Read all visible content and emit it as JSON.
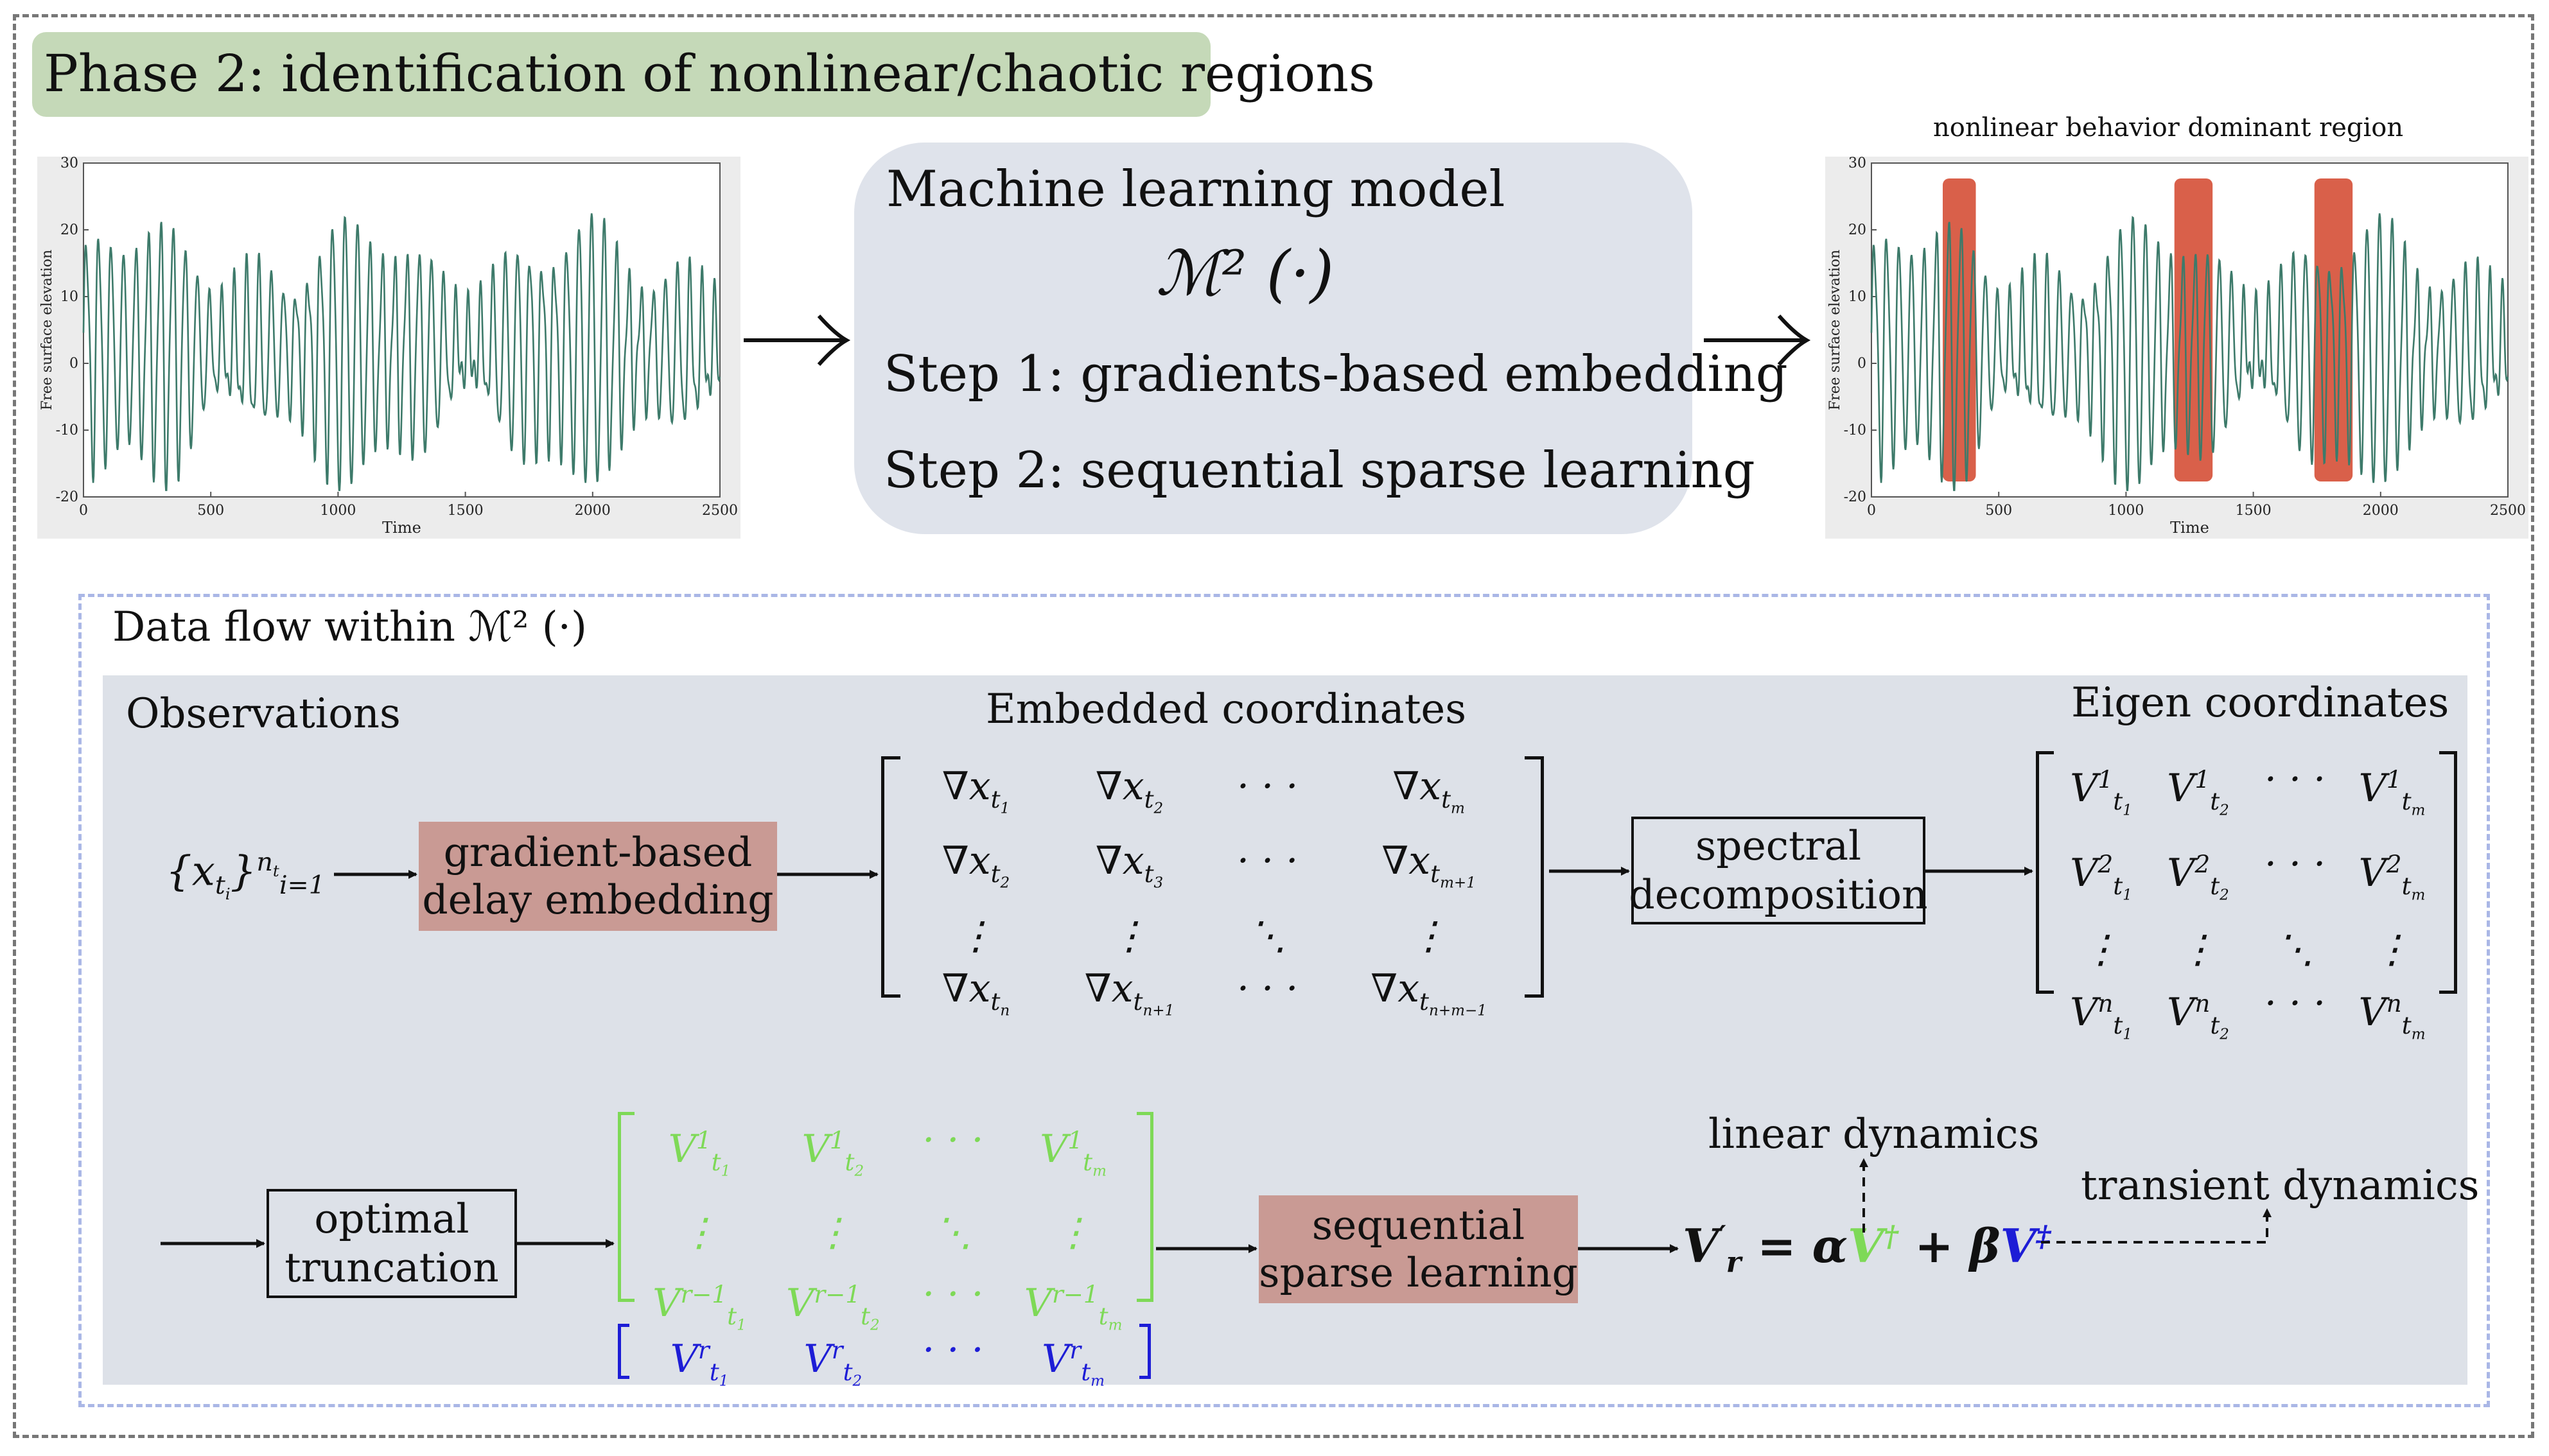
{
  "phase_title": "Phase 2:  identification of nonlinear/chaotic regions",
  "left_plot": {
    "ylabel": "Free surface elevation",
    "xlabel": "Time",
    "yticks": [
      "30",
      "20",
      "10",
      "0",
      "-10",
      "-20"
    ],
    "xticks": [
      "0",
      "500",
      "1000",
      "1500",
      "2000",
      "2500"
    ],
    "line_color": "#3d7a6a"
  },
  "right_plot": {
    "title": "nonlinear behavior dominant region",
    "ylabel": "Free surface elevation",
    "xlabel": "Time",
    "yticks": [
      "30",
      "20",
      "10",
      "0",
      "-10",
      "-20"
    ],
    "xticks": [
      "0",
      "500",
      "1000",
      "1500",
      "2000",
      "2500"
    ],
    "highlight_color": "#d9604a",
    "highlight_time_ranges": [
      [
        280,
        410
      ],
      [
        1190,
        1340
      ],
      [
        1740,
        1890
      ]
    ]
  },
  "ml_box": {
    "title": "Machine learning model",
    "symbol": "ℳ² (·)",
    "step1": "Step 1:  gradients-based embedding",
    "step2": "Step 2:  sequential sparse learning"
  },
  "dataflow": {
    "title": "Data flow within ℳ² (·)",
    "observations_label": "Observations",
    "embedded_label": "Embedded coordinates",
    "eigen_label": "Eigen coordinates",
    "obs_symbol": "{x<sub>t<sub>i</sub></sub>}<sup>n<sub>t</sub></sup><sub>i=1</sub>",
    "box_gradient": "gradient-based<br>delay embedding",
    "box_spectral": "spectral<br>decomposition",
    "box_truncation": "optimal<br>truncation",
    "box_sparse": "sequential<br>sparse learning",
    "linear_label": "linear dynamics",
    "transient_label": "transient dynamics",
    "colors": {
      "pink_box": "#c99a94",
      "green": "#7ed957",
      "blue": "#1d1dd6",
      "panel": "#dde1e8"
    }
  }
}
